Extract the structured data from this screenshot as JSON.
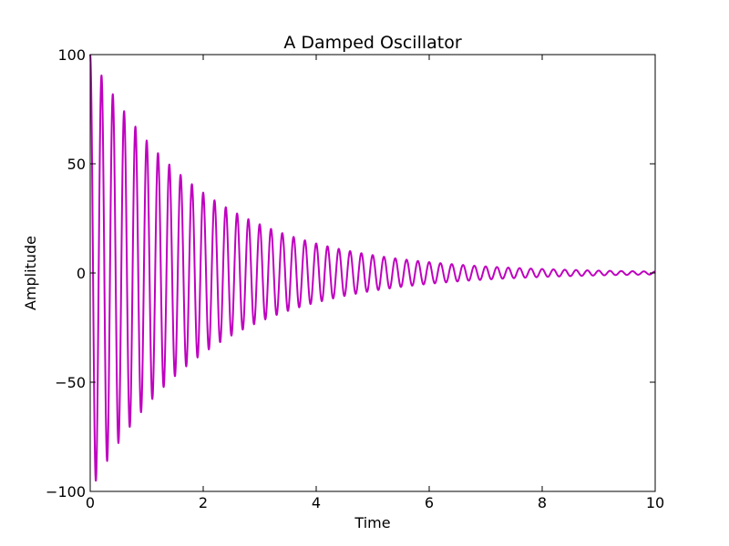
{
  "chart_data": {
    "type": "line",
    "title": "A Damped Oscillator",
    "xlabel": "Time",
    "ylabel": "Amplitude",
    "xlim": [
      0,
      10
    ],
    "ylim": [
      -100,
      100
    ],
    "xticks": [
      0,
      2,
      4,
      6,
      8,
      10
    ],
    "yticks": [
      -100,
      -50,
      0,
      50,
      100
    ],
    "xtick_labels": [
      "0",
      "2",
      "4",
      "6",
      "8",
      "10"
    ],
    "ytick_labels": [
      "−100",
      "−50",
      "0",
      "50",
      "100"
    ],
    "grid": false,
    "legend": "none",
    "series": [
      {
        "color": "#bf00bf",
        "model": "y = 100 * exp(-0.5 * t) * cos(2 * pi * 5 * t)",
        "amplitude": 100,
        "decay_rate": 0.5,
        "frequency_hz": 5,
        "x_samples": [
          0,
          0.1,
          0.2,
          0.3,
          0.4,
          0.5,
          0.6,
          0.7,
          0.8,
          0.9,
          1.0,
          2.0,
          3.0,
          4.0,
          5.0,
          6.0,
          7.0,
          8.0,
          9.0,
          10.0
        ],
        "y_samples": [
          100,
          -95.1,
          90.5,
          -86.1,
          81.9,
          -77.9,
          74.1,
          -70.5,
          67.0,
          -63.8,
          60.7,
          36.8,
          22.3,
          13.5,
          8.2,
          5.0,
          3.0,
          1.8,
          1.1,
          0.7
        ]
      }
    ]
  }
}
